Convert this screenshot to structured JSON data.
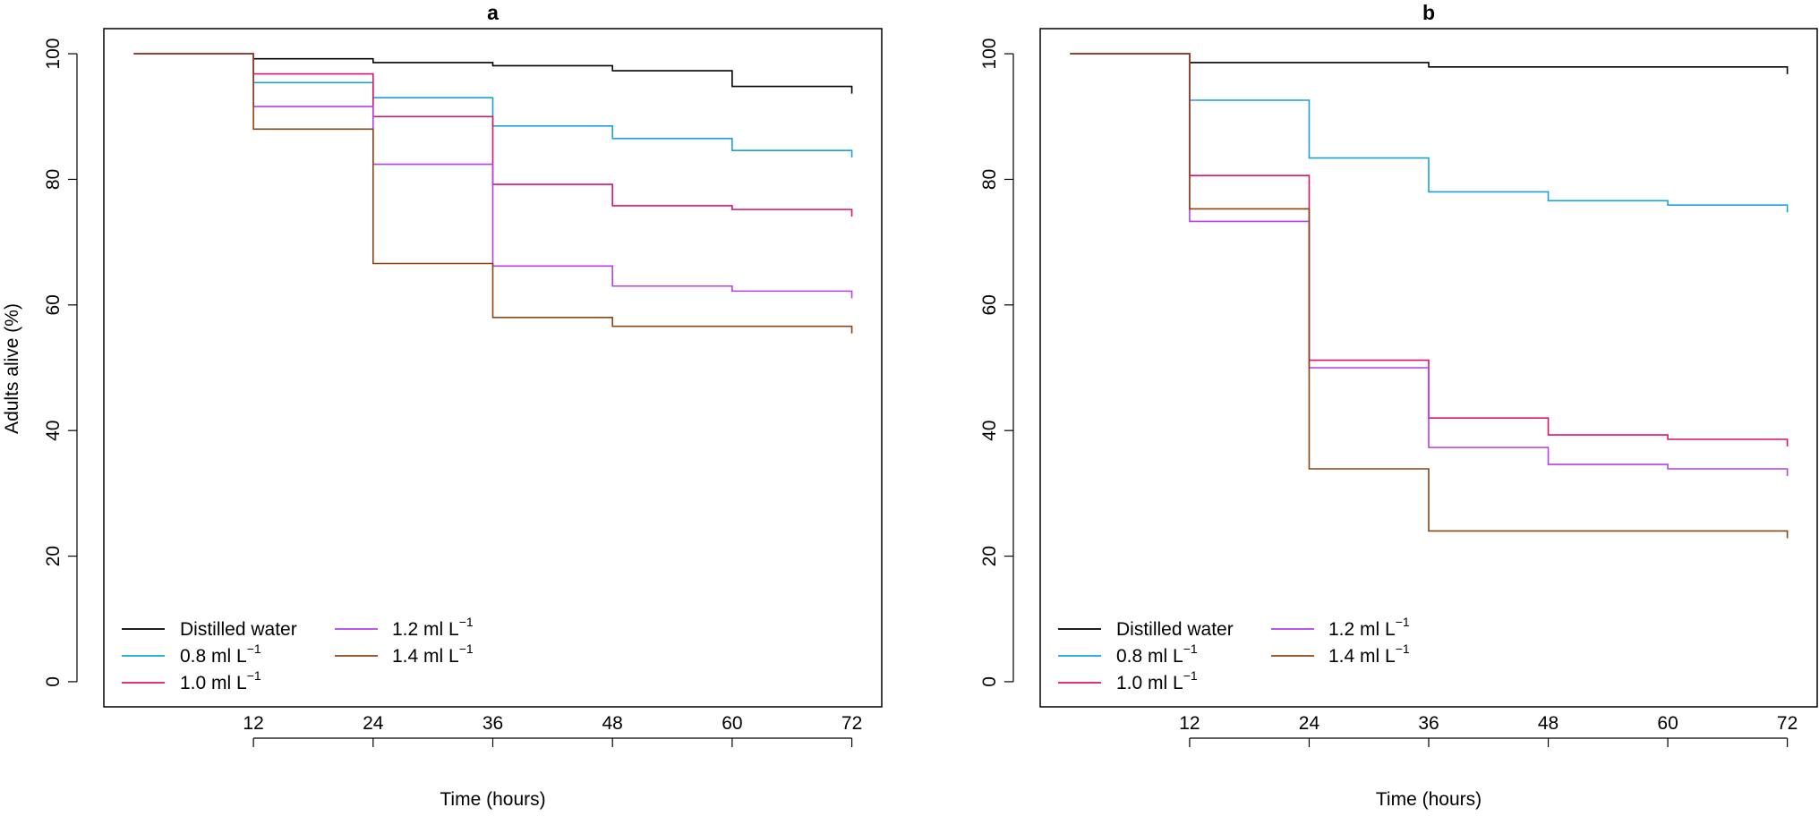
{
  "panels": [
    {
      "title": "a",
      "xlabel": "Time (hours)"
    },
    {
      "title": "b",
      "xlabel": "Time (hours)"
    }
  ],
  "ylabel": "Adults alive (%)",
  "legend": {
    "items": [
      {
        "label": "Distilled water",
        "color": "#000000"
      },
      {
        "label": "0.8 ml L",
        "sup": "−1",
        "color": "#1aa3d9"
      },
      {
        "label": "1.0 ml L",
        "sup": "−1",
        "color": "#e0116b"
      },
      {
        "label": "1.2 ml L",
        "sup": "−1",
        "color": "#b43ff0"
      },
      {
        "label": "1.4 ml L",
        "sup": "−1",
        "color": "#8b4513"
      }
    ]
  },
  "chart_data": [
    {
      "type": "line",
      "step": true,
      "title": "a",
      "xlabel": "Time (hours)",
      "ylabel": "Adults alive (%)",
      "xticks": [
        12,
        24,
        36,
        48,
        60,
        72
      ],
      "yticks": [
        0,
        20,
        40,
        60,
        80,
        100
      ],
      "xlim": [
        -3,
        75
      ],
      "ylim": [
        -4,
        104
      ],
      "x": [
        0,
        12,
        24,
        36,
        48,
        60,
        72
      ],
      "series": [
        {
          "name": "Distilled water",
          "color": "#000000",
          "values": [
            100,
            99.2,
            98.6,
            98.1,
            97.3,
            94.8,
            94.8
          ]
        },
        {
          "name": "0.8 ml L−1",
          "color": "#1aa3d9",
          "values": [
            100,
            95.4,
            93.0,
            88.5,
            86.5,
            84.6,
            84.6
          ]
        },
        {
          "name": "1.0 ml L−1",
          "color": "#e0116b",
          "values": [
            100,
            96.8,
            90.0,
            79.2,
            75.8,
            75.2,
            75.2
          ]
        },
        {
          "name": "1.2 ml L−1",
          "color": "#b43ff0",
          "values": [
            100,
            91.6,
            82.4,
            66.2,
            63.0,
            62.2,
            62.2
          ]
        },
        {
          "name": "1.4 ml L−1",
          "color": "#8b4513",
          "values": [
            100,
            88.0,
            66.6,
            58.0,
            56.6,
            56.6,
            56.6
          ]
        }
      ]
    },
    {
      "type": "line",
      "step": true,
      "title": "b",
      "xlabel": "Time (hours)",
      "ylabel": "Adults alive (%)",
      "xticks": [
        12,
        24,
        36,
        48,
        60,
        72
      ],
      "yticks": [
        0,
        20,
        40,
        60,
        80,
        100
      ],
      "xlim": [
        -3,
        75
      ],
      "ylim": [
        -4,
        104
      ],
      "x": [
        0,
        12,
        24,
        36,
        48,
        60,
        72
      ],
      "series": [
        {
          "name": "Distilled water",
          "color": "#000000",
          "values": [
            100,
            98.6,
            98.6,
            97.9,
            97.9,
            97.9,
            97.9
          ]
        },
        {
          "name": "0.8 ml L−1",
          "color": "#1aa3d9",
          "values": [
            100,
            92.6,
            83.4,
            78.0,
            76.6,
            75.9,
            75.9
          ]
        },
        {
          "name": "1.0 ml L−1",
          "color": "#e0116b",
          "values": [
            100,
            80.6,
            51.2,
            42.0,
            39.3,
            38.6,
            38.6
          ]
        },
        {
          "name": "1.2 ml L−1",
          "color": "#b43ff0",
          "values": [
            100,
            73.3,
            50.0,
            37.3,
            34.6,
            33.9,
            33.9
          ]
        },
        {
          "name": "1.4 ml L−1",
          "color": "#8b4513",
          "values": [
            100,
            75.3,
            33.9,
            24.0,
            24.0,
            24.0,
            24.0
          ]
        }
      ]
    }
  ]
}
